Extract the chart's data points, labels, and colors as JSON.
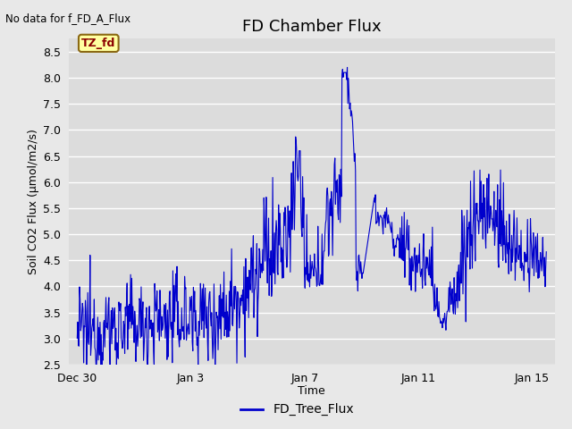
{
  "title": "FD Chamber Flux",
  "xlabel": "Time",
  "ylabel": "Soil CO2 Flux (μmol/m2/s)",
  "top_left_text": "No data for f_FD_A_Flux",
  "legend_label": "FD_Tree_Flux",
  "tag_text": "TZ_fd",
  "tag_bg_color": "#FFFFA0",
  "tag_border_color": "#8B6914",
  "tag_text_color": "#8B0000",
  "line_color": "#0000CC",
  "ylim": [
    2.5,
    8.75
  ],
  "yticks": [
    2.5,
    3.0,
    3.5,
    4.0,
    4.5,
    5.0,
    5.5,
    6.0,
    6.5,
    7.0,
    7.5,
    8.0,
    8.5
  ],
  "fig_bg_color": "#E8E8E8",
  "axes_bg_color": "#DCDCDC",
  "grid_color": "#FFFFFF",
  "title_fontsize": 13,
  "label_fontsize": 9,
  "tick_fontsize": 9,
  "xtick_positions": [
    0,
    4,
    8,
    12,
    16
  ],
  "xtick_labels": [
    "Dec 30",
    "Jan 3",
    "Jan 7",
    "Jan 11",
    "Jan 15"
  ]
}
